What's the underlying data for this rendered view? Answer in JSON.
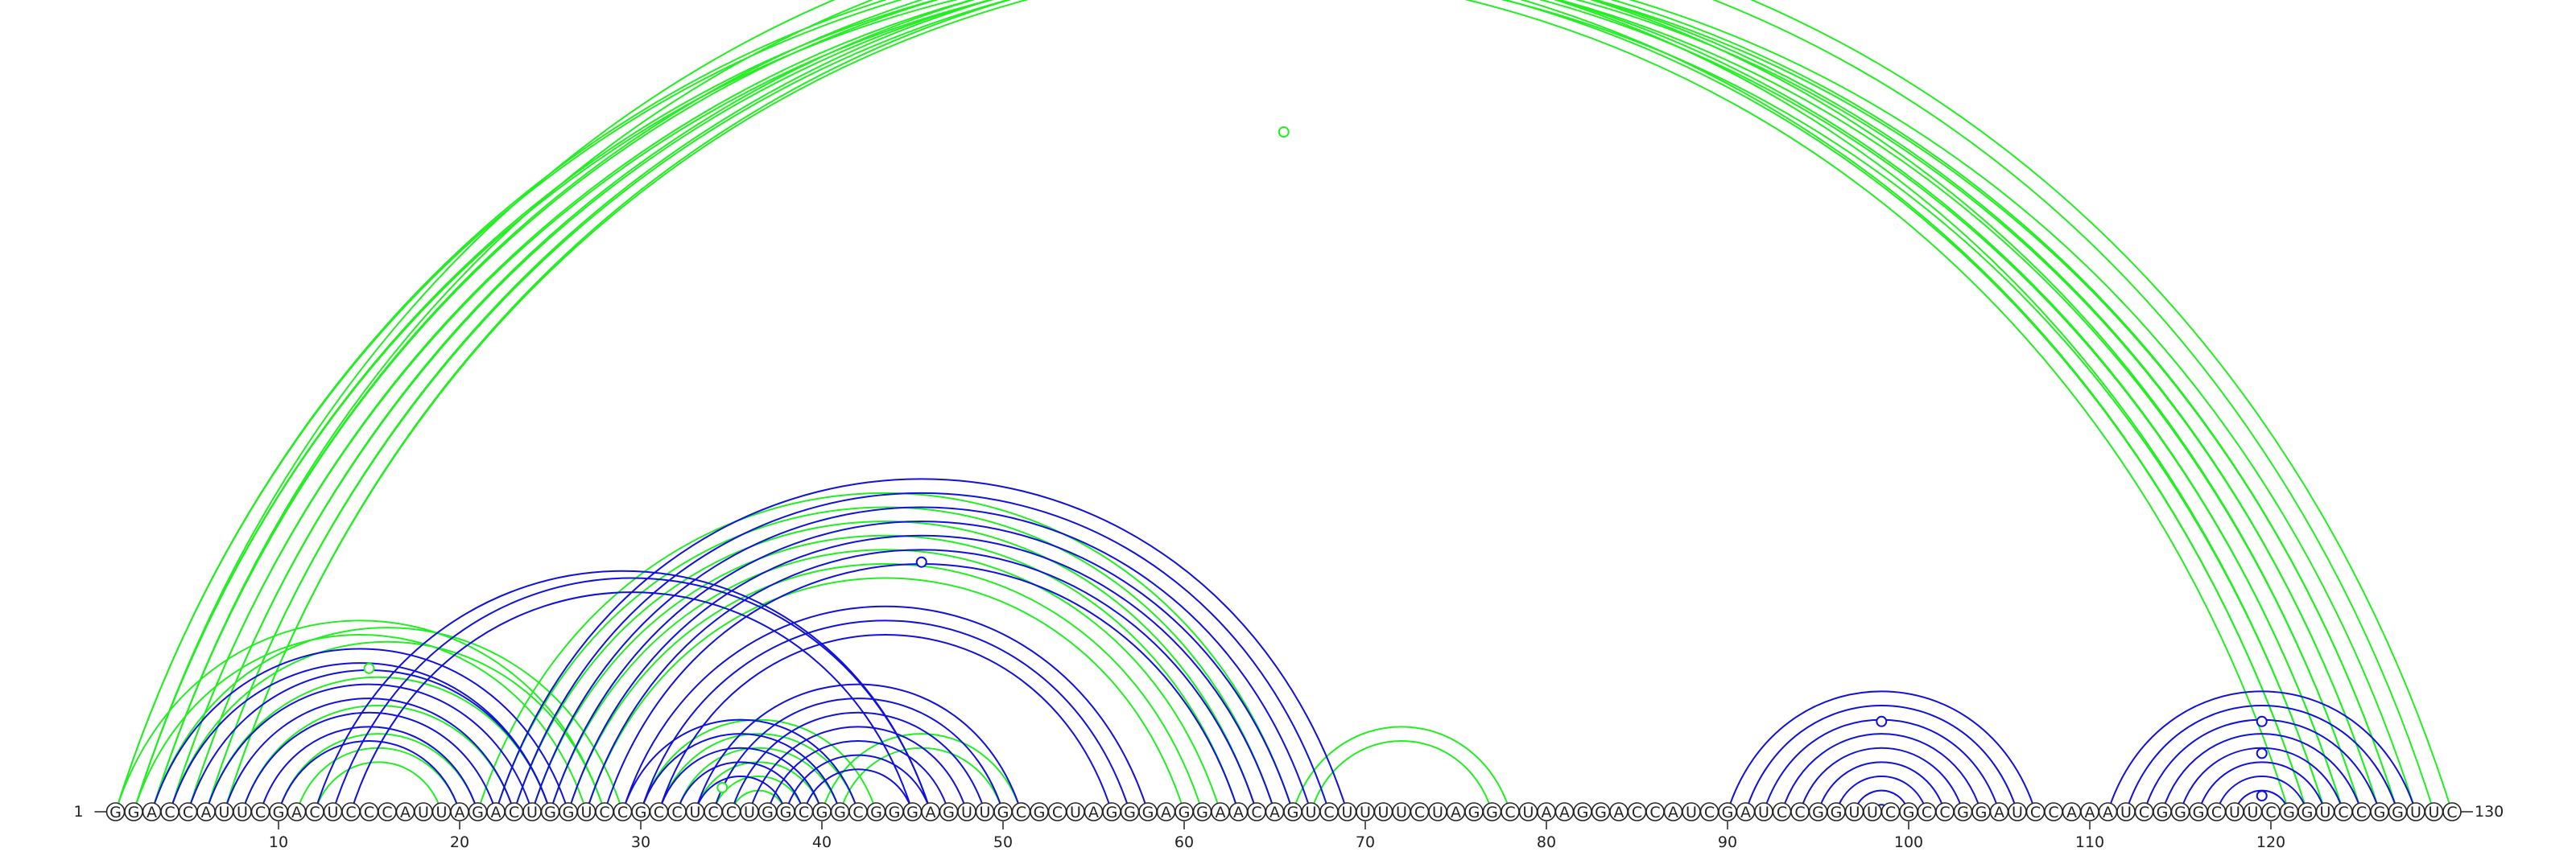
{
  "chart_data": {
    "type": "arc-diagram",
    "sequence": "GGACCAUUCGACUCCCAUUAGACUGGUCCGCCUCCUGGCGGCGGGAGUUGCGCUAGGGAGGAACAGUCUUUUCUAGGCUAAGGACCAUCGAUCCGGUUCGCCGGAUCCAAAUCGGGCUUCGGUCCGGUUC",
    "start_label": "1",
    "end_label": "130",
    "ticks": [
      10,
      20,
      30,
      40,
      50,
      60,
      70,
      80,
      90,
      100,
      110,
      120
    ],
    "colors": {
      "green": "#22ee22",
      "blue": "#1111dd"
    },
    "series": [
      {
        "color": "green",
        "pairs": [
          [
            1,
            122
          ],
          [
            1,
            123
          ],
          [
            2,
            121
          ],
          [
            2,
            122
          ],
          [
            3,
            124
          ],
          [
            3,
            125
          ],
          [
            4,
            123
          ],
          [
            4,
            124
          ],
          [
            5,
            125
          ],
          [
            5,
            126
          ],
          [
            6,
            126
          ],
          [
            6,
            127
          ],
          [
            7,
            127
          ],
          [
            7,
            128
          ],
          [
            2,
            130
          ],
          [
            3,
            129
          ],
          [
            1,
            28
          ],
          [
            2,
            27
          ],
          [
            3,
            29
          ],
          [
            4,
            28
          ],
          [
            6,
            25
          ],
          [
            8,
            23
          ],
          [
            10,
            21
          ],
          [
            11,
            20
          ],
          [
            12,
            19
          ],
          [
            21,
            66
          ],
          [
            22,
            65
          ],
          [
            23,
            64
          ],
          [
            24,
            63
          ],
          [
            25,
            62
          ],
          [
            26,
            61
          ],
          [
            27,
            60
          ],
          [
            30,
            43
          ],
          [
            31,
            42
          ],
          [
            32,
            41
          ],
          [
            33,
            40
          ],
          [
            34,
            39
          ],
          [
            35,
            38
          ],
          [
            40,
            51
          ],
          [
            41,
            50
          ],
          [
            66,
            78
          ],
          [
            67,
            77
          ]
        ]
      },
      {
        "color": "blue",
        "pairs": [
          [
            3,
            26
          ],
          [
            4,
            25
          ],
          [
            5,
            25
          ],
          [
            6,
            24
          ],
          [
            7,
            23
          ],
          [
            8,
            22
          ],
          [
            9,
            21
          ],
          [
            10,
            20
          ],
          [
            12,
            46
          ],
          [
            13,
            46
          ],
          [
            14,
            45
          ],
          [
            22,
            69
          ],
          [
            23,
            68
          ],
          [
            24,
            67
          ],
          [
            25,
            66
          ],
          [
            26,
            65
          ],
          [
            27,
            64
          ],
          [
            28,
            63
          ],
          [
            29,
            58
          ],
          [
            30,
            57
          ],
          [
            31,
            56
          ],
          [
            29,
            42
          ],
          [
            30,
            41
          ],
          [
            31,
            40
          ],
          [
            32,
            39
          ],
          [
            33,
            38
          ],
          [
            33,
            51
          ],
          [
            34,
            50
          ],
          [
            35,
            49
          ],
          [
            36,
            48
          ],
          [
            37,
            47
          ],
          [
            38,
            46
          ],
          [
            39,
            45
          ],
          [
            90,
            107
          ],
          [
            91,
            106
          ],
          [
            92,
            105
          ],
          [
            93,
            104
          ],
          [
            94,
            103
          ],
          [
            95,
            102
          ],
          [
            96,
            101
          ],
          [
            97,
            100
          ],
          [
            98,
            99
          ],
          [
            111,
            128
          ],
          [
            112,
            127
          ],
          [
            113,
            126
          ],
          [
            114,
            125
          ],
          [
            115,
            124
          ],
          [
            116,
            123
          ],
          [
            117,
            122
          ],
          [
            118,
            121
          ]
        ]
      }
    ],
    "markers": [
      {
        "pos": 65.5,
        "color": "green",
        "level": 0.995
      },
      {
        "pos": 45.5,
        "color": "blue",
        "level": 1.0
      },
      {
        "pos": 15.0,
        "color": "green",
        "level": 1.0
      },
      {
        "pos": 34.5,
        "color": "green",
        "level": 1.0
      },
      {
        "pos": 119.5,
        "color": "blue",
        "level": 1.0
      },
      {
        "pos": 119.5,
        "color": "blue",
        "level": 0.5
      },
      {
        "pos": 119.5,
        "color": "blue",
        "level": 0.0
      },
      {
        "pos": 98.5,
        "color": "blue",
        "level": 1.0
      }
    ]
  }
}
